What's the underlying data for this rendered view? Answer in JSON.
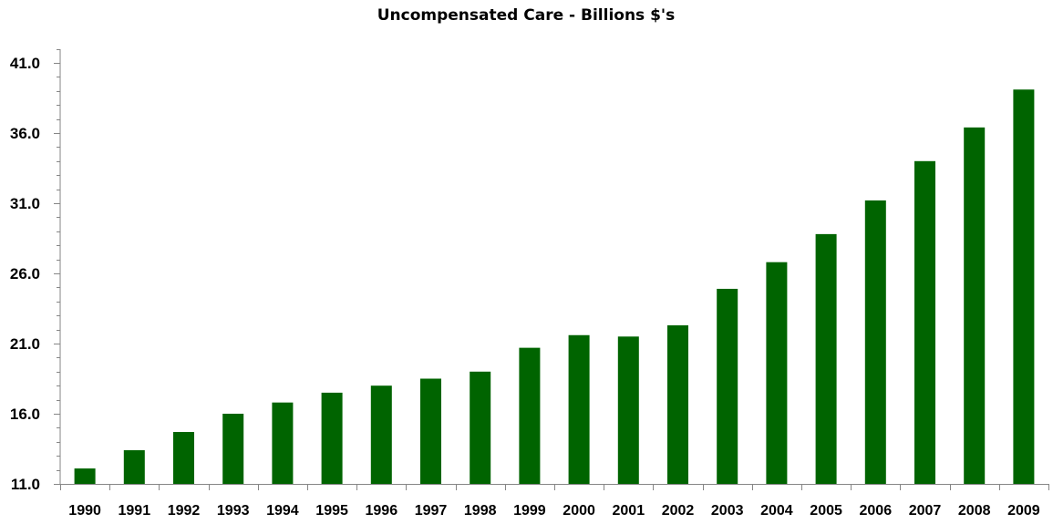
{
  "chart_data": {
    "type": "bar",
    "title": "Uncompensated Care - Billions $'s",
    "xlabel": "",
    "ylabel": "",
    "categories": [
      "1990",
      "1991",
      "1992",
      "1993",
      "1994",
      "1995",
      "1996",
      "1997",
      "1998",
      "1999",
      "2000",
      "2001",
      "2002",
      "2003",
      "2004",
      "2005",
      "2006",
      "2007",
      "2008",
      "2009"
    ],
    "values": [
      12.1,
      13.4,
      14.7,
      16.0,
      16.8,
      17.5,
      18.0,
      18.5,
      19.0,
      20.7,
      21.6,
      21.5,
      22.3,
      24.9,
      26.8,
      28.8,
      31.2,
      34.0,
      36.4,
      39.1
    ],
    "ylim": [
      11.0,
      42.0
    ],
    "y_ticks": [
      {
        "value": 11.0,
        "label": "11.0"
      },
      {
        "value": 16.0,
        "label": "16.0"
      },
      {
        "value": 21.0,
        "label": "21.0"
      },
      {
        "value": 26.0,
        "label": "26.0"
      },
      {
        "value": 31.0,
        "label": "31.0"
      },
      {
        "value": 36.0,
        "label": "36.0"
      },
      {
        "value": 41.0,
        "label": "41.0"
      }
    ],
    "y_minor_step": 1.0,
    "grid": false,
    "legend": "none",
    "bar_color": "#006400",
    "axis_color": "#868686"
  }
}
